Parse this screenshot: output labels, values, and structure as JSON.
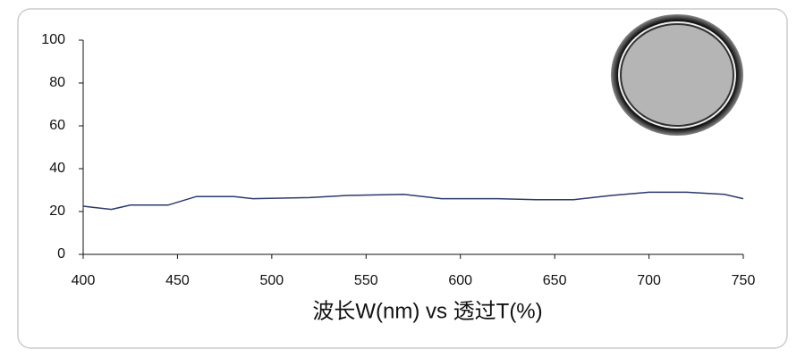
{
  "chart_data": {
    "type": "line",
    "x_label": "波长W(nm) vs 透过T(%)",
    "x": [
      400,
      405,
      415,
      425,
      445,
      460,
      480,
      490,
      520,
      540,
      570,
      590,
      620,
      640,
      660,
      680,
      700,
      720,
      740,
      750
    ],
    "values": [
      22.5,
      22,
      21,
      23,
      23,
      27,
      27,
      26,
      26.5,
      27.5,
      28,
      26,
      26,
      25.5,
      25.5,
      27.5,
      29,
      29,
      28,
      26
    ],
    "color": "#2b3a6b",
    "xlim": [
      400,
      750
    ],
    "xticks": [
      400,
      450,
      500,
      550,
      600,
      650,
      700,
      750
    ],
    "ylim": [
      0,
      100
    ],
    "yticks": [
      0,
      20,
      40,
      60,
      80,
      100
    ],
    "grid": false
  }
}
